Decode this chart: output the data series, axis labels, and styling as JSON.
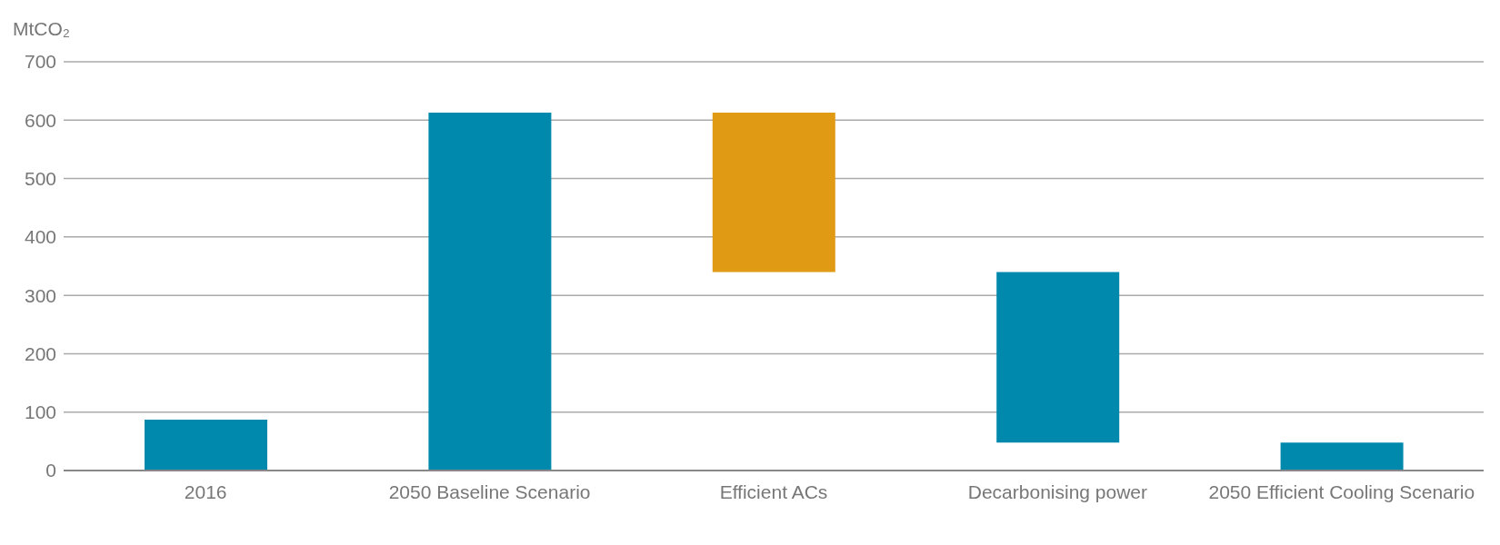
{
  "chart_data": {
    "type": "bar",
    "ylabel": "MtCO₂",
    "categories": [
      "2016",
      "2050 Baseline Scenario",
      "Efficient ACs",
      "Decarbonising power",
      "2050 Efficient Cooling Scenario"
    ],
    "values": [
      87,
      613,
      273,
      292,
      48
    ],
    "base": [
      0,
      0,
      340,
      48,
      0
    ],
    "colors": [
      "#0089ad",
      "#0089ad",
      "#e09a14",
      "#0089ad",
      "#0089ad"
    ],
    "ylim": [
      0,
      700
    ],
    "yticks": [
      0,
      100,
      200,
      300,
      400,
      500,
      600,
      700
    ],
    "grid": "y"
  }
}
